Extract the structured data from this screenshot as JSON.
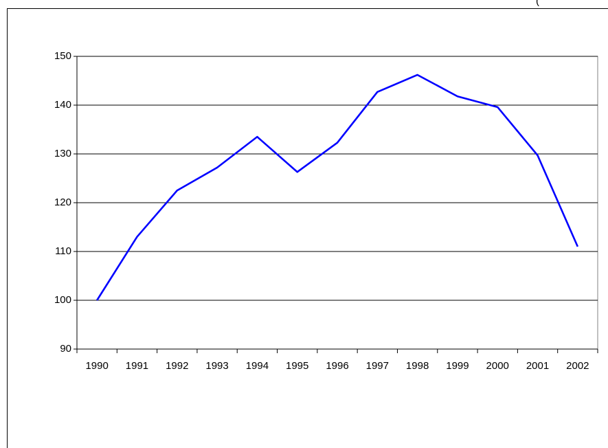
{
  "chart_data": {
    "type": "line",
    "annotation": "(",
    "categories": [
      "1990",
      "1991",
      "1992",
      "1993",
      "1994",
      "1995",
      "1996",
      "1997",
      "1998",
      "1999",
      "2000",
      "2001",
      "2002"
    ],
    "values": [
      100,
      113,
      122.5,
      127.2,
      133.5,
      126.3,
      132.3,
      142.7,
      146.2,
      141.8,
      139.6,
      129.7,
      111
    ],
    "color": "#0000ff",
    "ylim": [
      90,
      150
    ],
    "yticks": [
      90,
      100,
      110,
      120,
      130,
      140,
      150
    ],
    "grid": true
  }
}
